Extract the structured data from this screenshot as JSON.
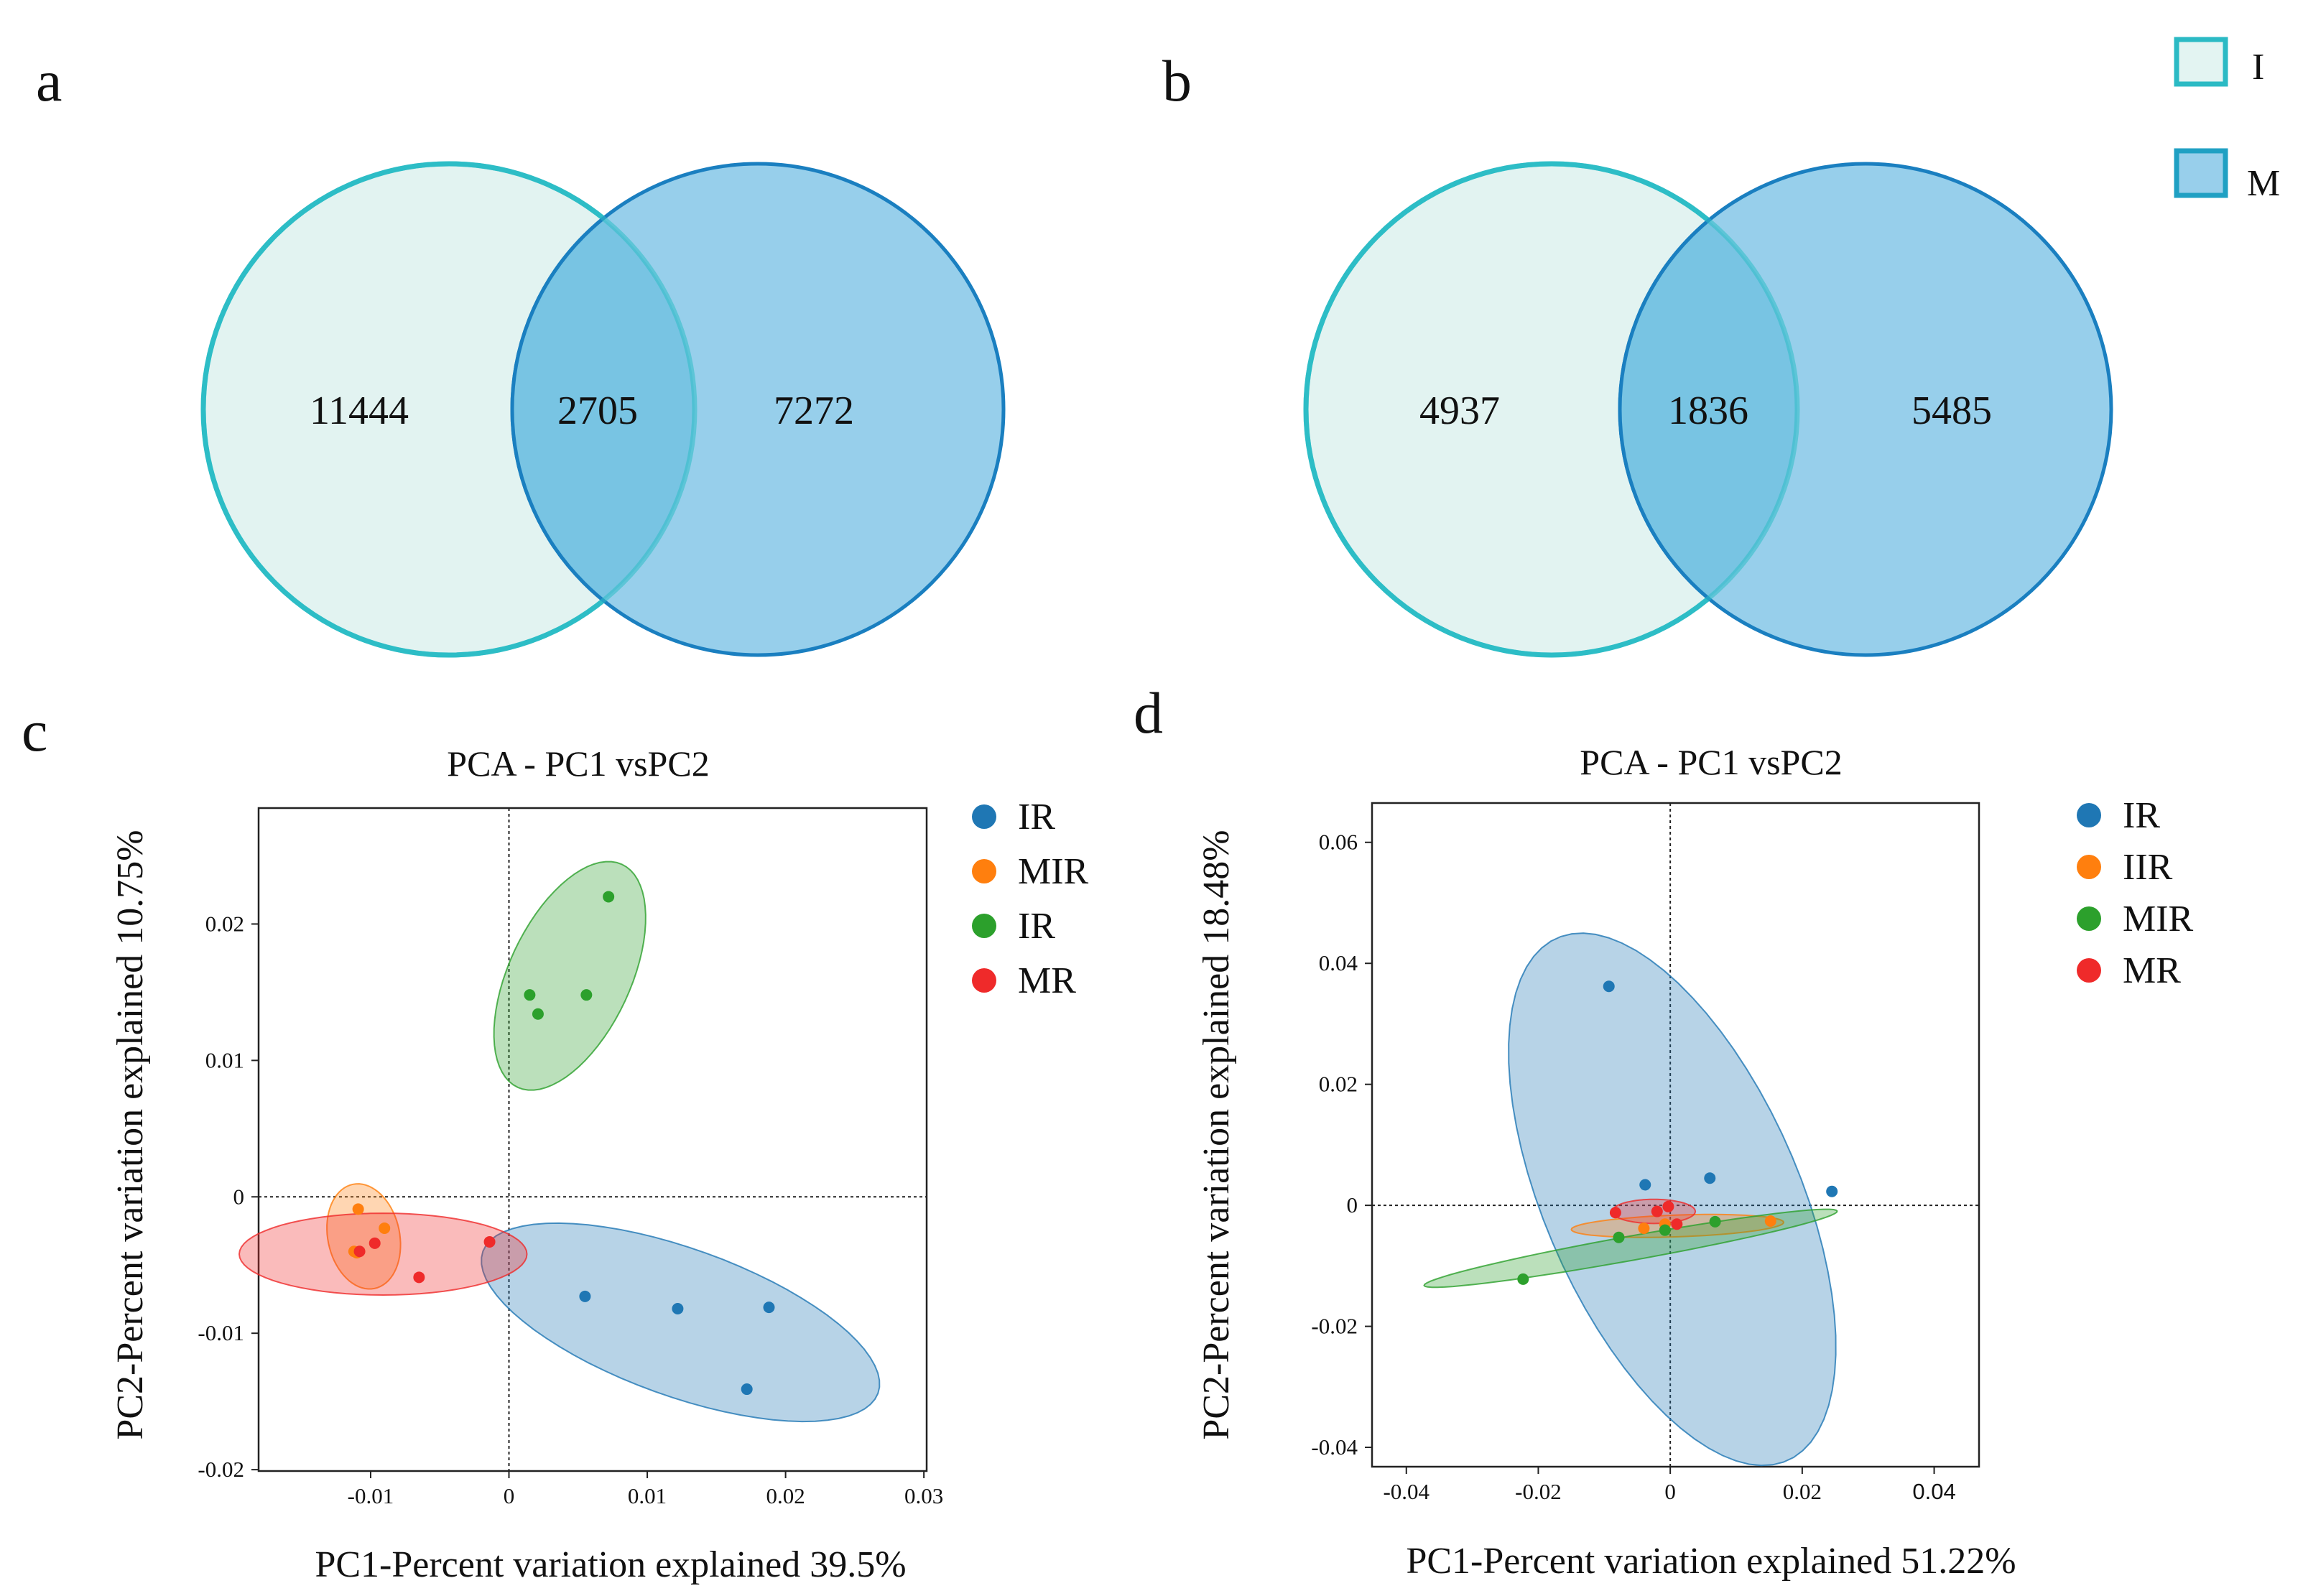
{
  "figure": {
    "panel_labels": [
      "a",
      "b",
      "c",
      "d"
    ],
    "venn_legend": [
      {
        "label": "I",
        "color": "#e3f4f2",
        "stroke": "#2bbac4"
      },
      {
        "label": "M",
        "color": "#98cfeb",
        "stroke": "#1fa0c3"
      }
    ]
  },
  "chart_data": [
    {
      "type": "venn",
      "panel": "a",
      "sets": [
        "I",
        "M"
      ],
      "regions": {
        "only_I": 11444,
        "both": 2705,
        "only_M": 7272
      },
      "colors": {
        "I": "#e2f3f1",
        "M": "#97cfeb",
        "overlap": "#78c4e3",
        "I_stroke": "#2ebdc6",
        "M_stroke": "#1a7fc0"
      }
    },
    {
      "type": "venn",
      "panel": "b",
      "sets": [
        "I",
        "M"
      ],
      "regions": {
        "only_I": 4937,
        "both": 1836,
        "only_M": 5485
      },
      "colors": {
        "I": "#e2f3f1",
        "M": "#97cfeb",
        "overlap": "#78c4e3",
        "I_stroke": "#2ebdc6",
        "M_stroke": "#1a7fc0"
      }
    },
    {
      "type": "scatter",
      "panel": "c",
      "title": "PCA - PC1 vsPC2",
      "xlabel": "PC1-Percent variation explained 39.5%",
      "ylabel": "PC2-Percent variation explained 10.75%",
      "xlim": [
        -0.0181,
        0.0302
      ],
      "ylim": [
        -0.0201,
        0.0285
      ],
      "xticks": [
        {
          "v": -0.01,
          "label": "-0.01"
        },
        {
          "v": 0,
          "label": "0"
        },
        {
          "v": 0.01,
          "label": "0.01"
        },
        {
          "v": 0.02,
          "label": "0.02"
        },
        {
          "v": 0.03,
          "label": "0.03"
        }
      ],
      "yticks": [
        {
          "v": 0.02,
          "label": "0.02"
        },
        {
          "v": 0.01,
          "label": "0.01"
        },
        {
          "v": 0,
          "label": "0"
        },
        {
          "v": -0.01,
          "label": "-0.01"
        },
        {
          "v": -0.02,
          "label": "-0.02"
        }
      ],
      "series": [
        {
          "name": "IR",
          "color": "#1f77b4",
          "points": [
            [
              0.0055,
              -0.0073
            ],
            [
              0.0122,
              -0.0082
            ],
            [
              0.0188,
              -0.0081
            ],
            [
              0.0172,
              -0.0141
            ]
          ],
          "ellipse": {
            "cx": 0.0124,
            "cy": -0.0092,
            "rx": 0.0152,
            "ry": 0.0054,
            "angle": -0.35
          }
        },
        {
          "name": "MIR",
          "color": "#ff7f0e",
          "points": [
            [
              -0.0109,
              -0.0009
            ],
            [
              -0.009,
              -0.0023
            ],
            [
              -0.0112,
              -0.004
            ],
            [
              -0.011,
              -0.0041
            ]
          ],
          "ellipse": {
            "cx": -0.0105,
            "cy": -0.0029,
            "rx": 0.0026,
            "ry": 0.0039,
            "angle": 0.2
          }
        },
        {
          "name": "IR",
          "color": "#2ca02c",
          "points": [
            [
              0.0072,
              0.022
            ],
            [
              0.0015,
              0.0148
            ],
            [
              0.0056,
              0.0148
            ],
            [
              0.0021,
              0.0134
            ]
          ],
          "ellipse": {
            "cx": 0.0044,
            "cy": 0.0162,
            "rx": 0.009,
            "ry": 0.0044,
            "angle": 1.14
          }
        },
        {
          "name": "MR",
          "color": "#ef2a2a",
          "points": [
            [
              -0.0014,
              -0.0033
            ],
            [
              -0.0097,
              -0.0034
            ],
            [
              -0.0108,
              -0.004
            ],
            [
              -0.0065,
              -0.0059
            ]
          ],
          "ellipse": {
            "cx": -0.0091,
            "cy": -0.0042,
            "rx": 0.0104,
            "ry": 0.003,
            "angle": 0
          }
        }
      ]
    },
    {
      "type": "scatter",
      "panel": "d",
      "title": "PCA - PC1 vsPC2",
      "xlabel": "PC1-Percent variation explained 51.22%",
      "ylabel": "PC2-Percent variation explained 18.48%",
      "xlim": [
        -0.0452,
        0.0468
      ],
      "ylim": [
        -0.0432,
        0.0665
      ],
      "xticks": [
        {
          "v": -0.04,
          "label": "-0.04"
        },
        {
          "v": -0.02,
          "label": "-0.02"
        },
        {
          "v": 0,
          "label": "0"
        },
        {
          "v": 0.02,
          "label": "0.02"
        },
        {
          "v": 0.04,
          "label": "0.04"
        }
      ],
      "yticks": [
        {
          "v": 0.06,
          "label": "0.06"
        },
        {
          "v": 0.04,
          "label": "0.04"
        },
        {
          "v": 0.02,
          "label": "0.02"
        },
        {
          "v": 0,
          "label": "0"
        },
        {
          "v": -0.02,
          "label": "-0.02"
        },
        {
          "v": -0.04,
          "label": "-0.04"
        }
      ],
      "series": [
        {
          "name": "IR",
          "color": "#1f77b4",
          "points": [
            [
              -0.0093,
              0.0362
            ],
            [
              0.006,
              0.0045
            ],
            [
              -0.0038,
              0.0034
            ],
            [
              0.0245,
              0.0023
            ]
          ],
          "ellipse": {
            "cx": 0.0003,
            "cy": 0.001,
            "rx": 0.0466,
            "ry": 0.0195,
            "angle": -1.2
          }
        },
        {
          "name": "IIR",
          "color": "#ff7f0e",
          "points": [
            [
              0.0152,
              -0.0026
            ],
            [
              -0.0008,
              -0.0031
            ],
            [
              -0.004,
              -0.0038
            ]
          ],
          "ellipse": {
            "cx": 0.0011,
            "cy": -0.0034,
            "rx": 0.0161,
            "ry": 0.0018,
            "angle": 0.037
          }
        },
        {
          "name": "MIR",
          "color": "#2ca02c",
          "points": [
            [
              -0.0223,
              -0.0122
            ],
            [
              -0.0078,
              -0.0053
            ],
            [
              0.0068,
              -0.0027
            ],
            [
              -0.0008,
              -0.0041
            ]
          ],
          "ellipse": {
            "cx": -0.006,
            "cy": -0.0071,
            "rx": 0.0319,
            "ry": 0.002,
            "angle": 0.194
          }
        },
        {
          "name": "MR",
          "color": "#ef2a2a",
          "points": [
            [
              -0.0083,
              -0.0012
            ],
            [
              -0.002,
              -0.001
            ],
            [
              -0.0003,
              -0.0002
            ],
            [
              0.001,
              -0.0031
            ]
          ],
          "ellipse": {
            "cx": -0.0025,
            "cy": -0.001,
            "rx": 0.0063,
            "ry": 0.002,
            "angle": 0
          }
        }
      ]
    }
  ]
}
